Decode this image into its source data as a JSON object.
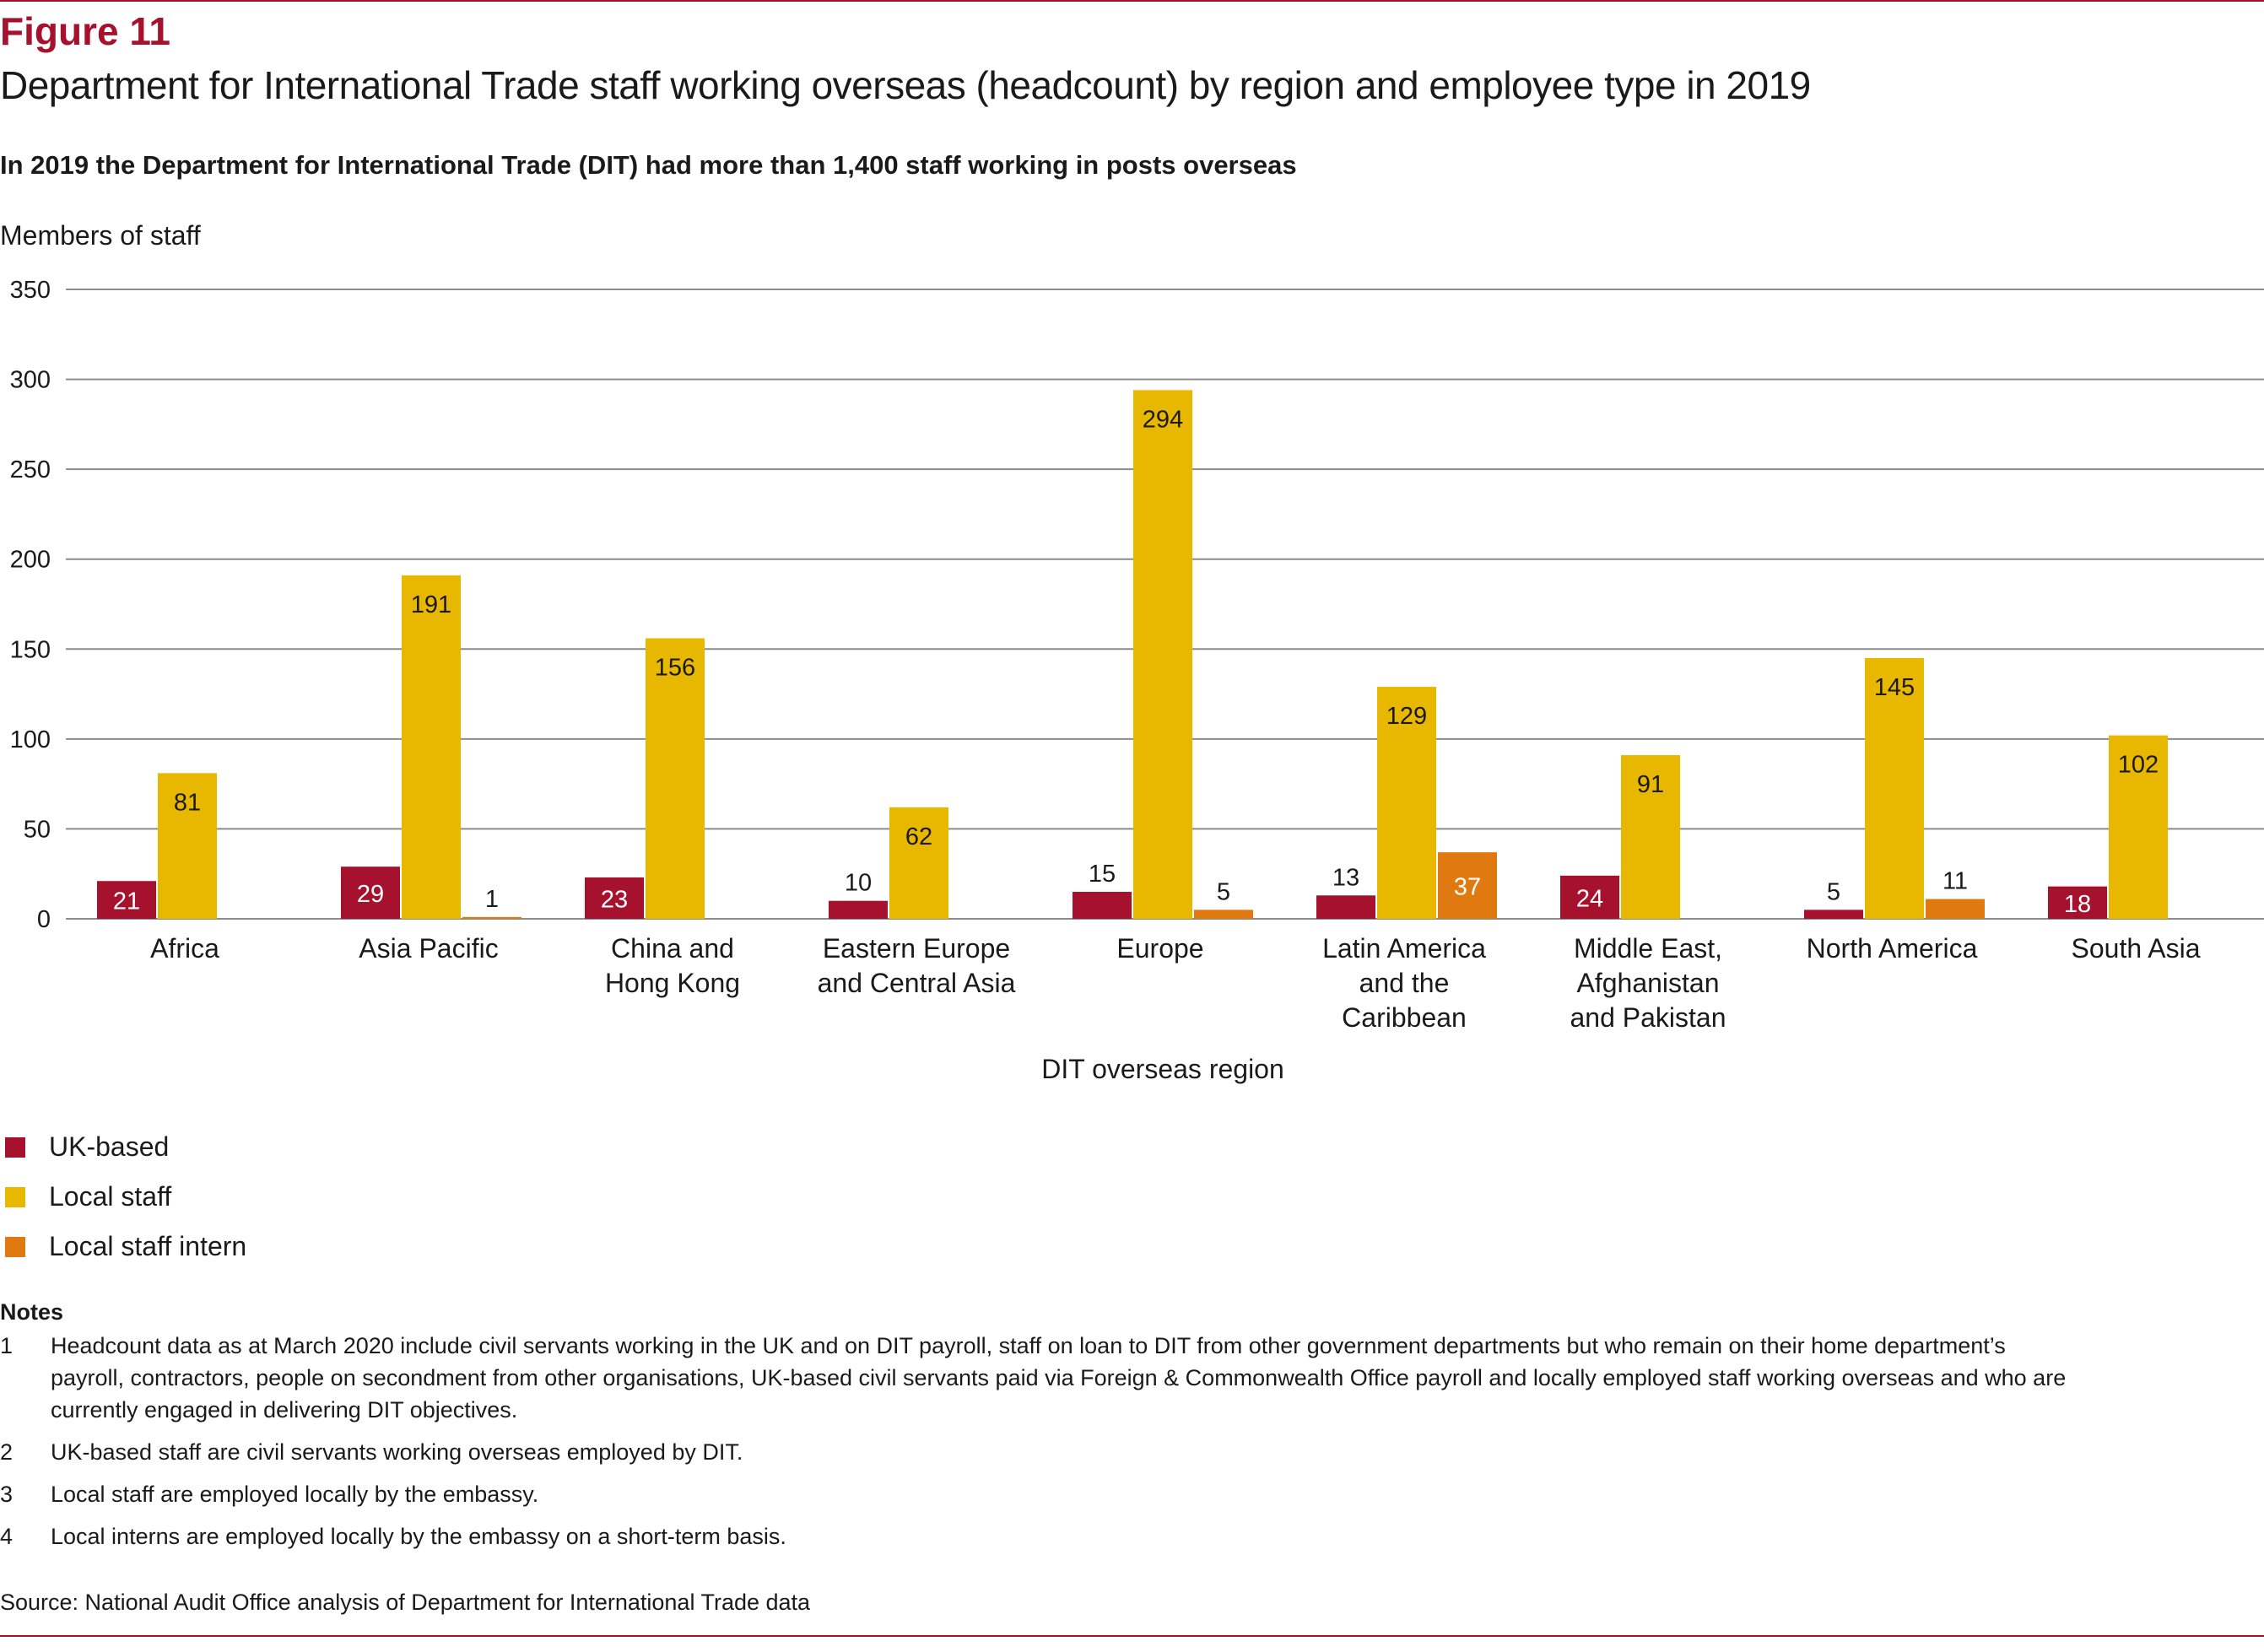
{
  "figure": {
    "label": "Figure 11",
    "title": "Department for International Trade staff working overseas (headcount) by region and employee type in 2019",
    "subtitle": "In 2019 the Department for International Trade (DIT) had more than 1,400 staff working in posts overseas"
  },
  "colors": {
    "accent": "#a6122d",
    "uk_based": "#a6122d",
    "local_staff": "#e8b800",
    "local_intern": "#e07a10",
    "gridline": "#8c8c8c"
  },
  "chart_data": {
    "type": "bar",
    "title": "Department for International Trade staff working overseas (headcount) by region and employee type in 2019",
    "ylabel": "Members of staff",
    "xlabel": "DIT overseas region",
    "ylim": [
      0,
      350
    ],
    "yticks": [
      0,
      50,
      100,
      150,
      200,
      250,
      300,
      350
    ],
    "grid": true,
    "legend_position": "bottom-left",
    "categories": [
      [
        "Africa"
      ],
      [
        "Asia Pacific"
      ],
      [
        "China and",
        "Hong Kong"
      ],
      [
        "Eastern Europe",
        "and Central Asia"
      ],
      [
        "Europe"
      ],
      [
        "Latin America",
        "and the",
        "Caribbean"
      ],
      [
        "Middle East,",
        "Afghanistan",
        "and Pakistan"
      ],
      [
        "North America"
      ],
      [
        "South Asia"
      ]
    ],
    "series": [
      {
        "name": "UK-based",
        "color": "#a6122d",
        "values": [
          21,
          29,
          23,
          10,
          15,
          13,
          24,
          5,
          18
        ]
      },
      {
        "name": "Local staff",
        "color": "#e8b800",
        "values": [
          81,
          191,
          156,
          62,
          294,
          129,
          91,
          145,
          102
        ]
      },
      {
        "name": "Local staff intern",
        "color": "#e07a10",
        "values": [
          null,
          1,
          null,
          null,
          5,
          37,
          null,
          11,
          null
        ]
      }
    ]
  },
  "notes": {
    "heading": "Notes",
    "items": [
      {
        "num": "1",
        "text": "Headcount data as at March 2020 include civil servants working in the UK and on DIT payroll, staff on loan to DIT from other government departments but who remain on their home department’s payroll, contractors, people on secondment from other organisations, UK-based civil servants paid via Foreign & Commonwealth Office payroll and locally employed staff working overseas and who are currently engaged in delivering DIT objectives."
      },
      {
        "num": "2",
        "text": "UK-based staff are civil servants working overseas employed by DIT."
      },
      {
        "num": "3",
        "text": "Local staff are employed locally by the embassy."
      },
      {
        "num": "4",
        "text": "Local interns are employed locally by the embassy on a short-term basis."
      }
    ]
  },
  "source": "Source: National Audit Office analysis of Department for International Trade data"
}
